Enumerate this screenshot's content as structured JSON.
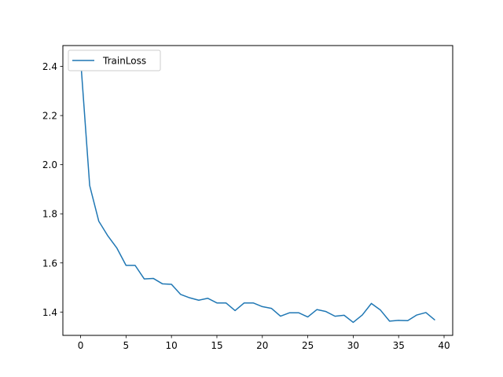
{
  "chart_data": {
    "type": "line",
    "title": "",
    "xlabel": "",
    "ylabel": "",
    "xlim": [
      -1.95,
      40.95
    ],
    "ylim": [
      1.305,
      2.485
    ],
    "xticks": [
      0,
      5,
      10,
      15,
      20,
      25,
      30,
      35,
      40
    ],
    "yticks": [
      1.4,
      1.6,
      1.8,
      2.0,
      2.2,
      2.4
    ],
    "xtick_labels": [
      "0",
      "5",
      "10",
      "15",
      "20",
      "25",
      "30",
      "35",
      "40"
    ],
    "ytick_labels": [
      "1.4",
      "1.6",
      "1.8",
      "2.0",
      "2.2",
      "2.4"
    ],
    "grid": false,
    "legend_position": "top-left",
    "series": [
      {
        "name": "TrainLoss",
        "color": "#1f77b4",
        "x": [
          0,
          1,
          2,
          3,
          4,
          5,
          6,
          7,
          8,
          9,
          10,
          11,
          12,
          13,
          14,
          15,
          16,
          17,
          18,
          19,
          20,
          21,
          22,
          23,
          24,
          25,
          26,
          27,
          28,
          29,
          30,
          31,
          32,
          33,
          34,
          35,
          36,
          37,
          38,
          39
        ],
        "values": [
          2.43,
          1.915,
          1.77,
          1.71,
          1.66,
          1.59,
          1.59,
          1.535,
          1.537,
          1.515,
          1.513,
          1.472,
          1.458,
          1.448,
          1.456,
          1.437,
          1.437,
          1.406,
          1.437,
          1.437,
          1.422,
          1.415,
          1.383,
          1.397,
          1.397,
          1.38,
          1.41,
          1.402,
          1.383,
          1.387,
          1.358,
          1.388,
          1.435,
          1.408,
          1.363,
          1.366,
          1.365,
          1.388,
          1.398,
          1.367
        ]
      }
    ]
  }
}
